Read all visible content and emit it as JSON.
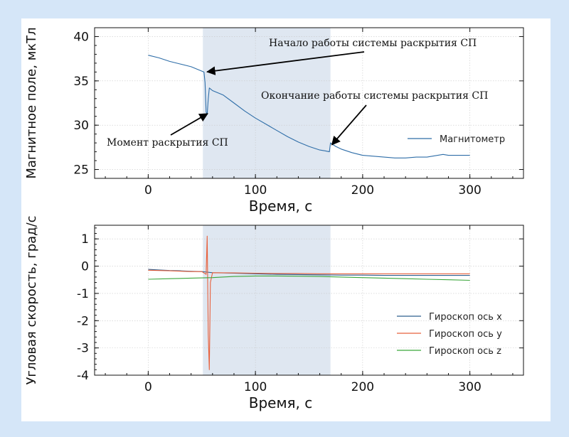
{
  "chart_data": [
    {
      "type": "line",
      "xlabel": "Время, с",
      "ylabel": "Магнитное поле, мкТл",
      "xlim": [
        -50,
        350
      ],
      "ylim": [
        24,
        41
      ],
      "xticks": [
        0,
        100,
        200,
        300
      ],
      "yticks": [
        25,
        30,
        35,
        40
      ],
      "shaded_region": [
        51,
        170
      ],
      "grid": true,
      "legend_position": "right",
      "series": [
        {
          "name": "Магнитометр",
          "color": "#2f6ea8",
          "x": [
            0,
            10,
            20,
            30,
            40,
            50,
            52,
            53,
            54,
            55,
            56,
            57,
            60,
            70,
            80,
            90,
            100,
            110,
            120,
            130,
            140,
            150,
            160,
            165,
            169,
            170,
            171,
            175,
            180,
            190,
            200,
            210,
            220,
            230,
            240,
            250,
            260,
            270,
            275,
            280,
            290,
            300
          ],
          "y": [
            37.9,
            37.6,
            37.2,
            36.9,
            36.6,
            36.1,
            36.0,
            34.8,
            31.5,
            31.2,
            33.0,
            34.2,
            33.9,
            33.4,
            32.5,
            31.6,
            30.8,
            30.1,
            29.4,
            28.7,
            28.1,
            27.6,
            27.2,
            27.1,
            27.0,
            28.0,
            27.9,
            27.6,
            27.3,
            26.9,
            26.6,
            26.5,
            26.4,
            26.3,
            26.3,
            26.4,
            26.4,
            26.6,
            26.7,
            26.6,
            26.6,
            26.6
          ]
        }
      ],
      "annotations": [
        {
          "text": "Начало работы системы раскрытия СП",
          "x": 53,
          "y": 36.1
        },
        {
          "text": "Окончание работы системы раскрытия СП",
          "x": 170,
          "y": 27.8
        },
        {
          "text": "Момент раскрытия СП",
          "x": 54,
          "y": 31.3
        }
      ]
    },
    {
      "type": "line",
      "xlabel": "Время, с",
      "ylabel": "Угловая скорость, град/с",
      "xlim": [
        -50,
        350
      ],
      "ylim": [
        -4,
        1.5
      ],
      "xticks": [
        0,
        100,
        200,
        300
      ],
      "yticks": [
        1,
        0,
        -1,
        -2,
        -3,
        -4
      ],
      "shaded_region": [
        51,
        170
      ],
      "grid": true,
      "legend_position": "lower right",
      "series": [
        {
          "name": "Гироскоп ось x",
          "color": "#2e5f8f",
          "x": [
            0,
            10,
            20,
            30,
            40,
            50,
            55,
            60,
            70,
            80,
            100,
            120,
            140,
            160,
            180,
            200,
            220,
            240,
            260,
            280,
            300
          ],
          "y": [
            -0.12,
            -0.14,
            -0.16,
            -0.17,
            -0.19,
            -0.2,
            -0.22,
            -0.24,
            -0.25,
            -0.26,
            -0.28,
            -0.3,
            -0.31,
            -0.32,
            -0.33,
            -0.33,
            -0.34,
            -0.34,
            -0.34,
            -0.34,
            -0.34
          ]
        },
        {
          "name": "Гироскоп ось y",
          "color": "#e8603c",
          "x": [
            0,
            20,
            40,
            50,
            54,
            55,
            56,
            57,
            58,
            60,
            80,
            100,
            120,
            140,
            160,
            180,
            200,
            220,
            240,
            260,
            280,
            300
          ],
          "y": [
            -0.15,
            -0.17,
            -0.2,
            -0.2,
            -0.3,
            1.1,
            -2.5,
            -3.8,
            -0.6,
            -0.24,
            -0.25,
            -0.26,
            -0.27,
            -0.27,
            -0.28,
            -0.28,
            -0.28,
            -0.28,
            -0.28,
            -0.28,
            -0.28,
            -0.28
          ]
        },
        {
          "name": "Гироскоп ось z",
          "color": "#3aa63a",
          "x": [
            0,
            20,
            40,
            60,
            80,
            100,
            120,
            140,
            160,
            180,
            200,
            220,
            240,
            260,
            280,
            300
          ],
          "y": [
            -0.48,
            -0.46,
            -0.44,
            -0.42,
            -0.38,
            -0.36,
            -0.36,
            -0.37,
            -0.38,
            -0.4,
            -0.42,
            -0.44,
            -0.46,
            -0.48,
            -0.5,
            -0.52
          ]
        }
      ]
    }
  ]
}
